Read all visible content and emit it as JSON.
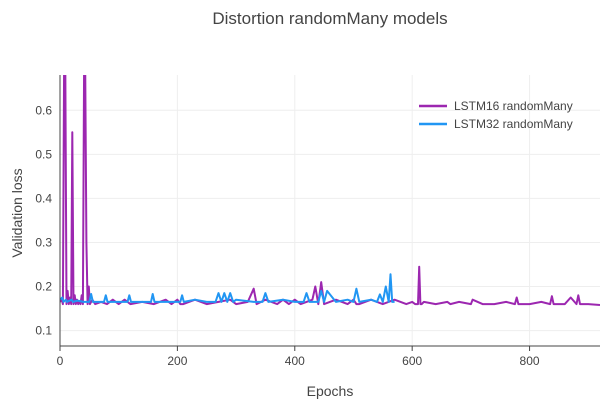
{
  "chart_data": {
    "type": "line",
    "title": "Distortion randomMany models",
    "xlabel": "Epochs",
    "ylabel": "Validation loss",
    "xlim": [
      0,
      920
    ],
    "ylim": [
      0.065,
      0.68
    ],
    "x_ticks": [
      0,
      200,
      400,
      600,
      800
    ],
    "x_tick_labels": [
      "0",
      "200",
      "400",
      "600",
      "800"
    ],
    "y_ticks": [
      0.1,
      0.2,
      0.3,
      0.4,
      0.5,
      0.6
    ],
    "y_tick_labels": [
      "0.1",
      "0.2",
      "0.3",
      "0.4",
      "0.5",
      "0.6"
    ],
    "grid": true,
    "legend_position": "top-right",
    "series": [
      {
        "name": "LSTM16 randomMany",
        "color": "#9c27b0",
        "x": [
          0,
          3,
          5,
          7,
          9,
          11,
          13,
          15,
          17,
          19,
          21,
          23,
          25,
          27,
          29,
          31,
          33,
          35,
          37,
          39,
          41,
          43,
          45,
          47,
          49,
          51,
          55,
          60,
          70,
          80,
          90,
          100,
          110,
          120,
          140,
          160,
          180,
          190,
          200,
          205,
          210,
          230,
          250,
          270,
          290,
          300,
          320,
          330,
          335,
          350,
          370,
          380,
          390,
          400,
          410,
          420,
          430,
          435,
          440,
          445,
          450,
          470,
          490,
          500,
          505,
          510,
          530,
          550,
          570,
          590,
          600,
          605,
          610,
          612,
          614,
          616,
          620,
          640,
          660,
          665,
          680,
          700,
          703,
          720,
          740,
          760,
          775,
          778,
          781,
          800,
          820,
          835,
          838,
          841,
          860,
          870,
          880,
          883,
          886,
          900,
          920
        ],
        "y": [
          0.165,
          0.17,
          0.16,
          0.7,
          0.7,
          0.16,
          0.19,
          0.16,
          0.175,
          0.16,
          0.55,
          0.16,
          0.18,
          0.16,
          0.17,
          0.16,
          0.165,
          0.16,
          0.18,
          0.16,
          0.7,
          0.7,
          0.3,
          0.16,
          0.2,
          0.16,
          0.17,
          0.16,
          0.165,
          0.16,
          0.17,
          0.16,
          0.17,
          0.16,
          0.165,
          0.16,
          0.17,
          0.16,
          0.17,
          0.16,
          0.16,
          0.17,
          0.16,
          0.165,
          0.17,
          0.16,
          0.165,
          0.195,
          0.16,
          0.17,
          0.16,
          0.17,
          0.16,
          0.17,
          0.16,
          0.165,
          0.17,
          0.2,
          0.16,
          0.21,
          0.16,
          0.17,
          0.16,
          0.17,
          0.16,
          0.16,
          0.17,
          0.16,
          0.17,
          0.16,
          0.165,
          0.16,
          0.16,
          0.245,
          0.16,
          0.16,
          0.165,
          0.16,
          0.165,
          0.16,
          0.165,
          0.16,
          0.17,
          0.16,
          0.16,
          0.165,
          0.16,
          0.175,
          0.16,
          0.16,
          0.165,
          0.16,
          0.178,
          0.16,
          0.16,
          0.175,
          0.16,
          0.18,
          0.16,
          0.16,
          0.158
        ]
      },
      {
        "name": "LSTM32 randomMany",
        "color": "#2196f3",
        "x": [
          0,
          4,
          6,
          10,
          12,
          20,
          22,
          30,
          40,
          50,
          53,
          56,
          60,
          75,
          78,
          81,
          100,
          115,
          118,
          121,
          150,
          155,
          158,
          161,
          190,
          205,
          208,
          211,
          230,
          250,
          265,
          270,
          275,
          280,
          285,
          290,
          295,
          300,
          330,
          345,
          350,
          355,
          380,
          400,
          415,
          420,
          425,
          440,
          445,
          450,
          455,
          470,
          490,
          500,
          505,
          510,
          530,
          540,
          545,
          550,
          555,
          560,
          563,
          566,
          570
        ],
        "y": [
          0.17,
          0.175,
          0.165,
          0.17,
          0.165,
          0.17,
          0.165,
          0.168,
          0.165,
          0.165,
          0.183,
          0.165,
          0.165,
          0.165,
          0.18,
          0.165,
          0.165,
          0.165,
          0.18,
          0.165,
          0.165,
          0.165,
          0.183,
          0.165,
          0.165,
          0.165,
          0.18,
          0.165,
          0.17,
          0.165,
          0.165,
          0.185,
          0.165,
          0.185,
          0.165,
          0.185,
          0.165,
          0.17,
          0.165,
          0.165,
          0.185,
          0.165,
          0.17,
          0.165,
          0.165,
          0.185,
          0.165,
          0.165,
          0.19,
          0.165,
          0.19,
          0.165,
          0.17,
          0.165,
          0.195,
          0.165,
          0.17,
          0.165,
          0.182,
          0.165,
          0.2,
          0.165,
          0.228,
          0.165,
          0.165
        ]
      }
    ]
  }
}
